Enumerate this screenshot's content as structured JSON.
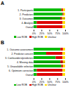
{
  "chart_data": [
    {
      "type": "bar",
      "title": "A",
      "orientation": "horizontal",
      "stacked": true,
      "legend": "bottom",
      "categories": [
        "1. Participants",
        "2. Predictors",
        "3. Outcomes",
        "4. Analysis",
        "Overall"
      ],
      "series": [
        {
          "name": "Low ROB",
          "color": "#00bb00",
          "values": [
            88,
            92,
            85,
            10,
            10
          ]
        },
        {
          "name": "High ROB",
          "color": "#dd0000",
          "values": [
            5,
            3,
            5,
            82,
            82
          ]
        },
        {
          "name": "Unclear",
          "color": "#ffdd00",
          "values": [
            7,
            5,
            10,
            8,
            8
          ]
        }
      ],
      "xlim": [
        0,
        100
      ],
      "xticks": [
        {
          "value": 0,
          "label": "0%"
        },
        {
          "value": 25,
          "label": "25%"
        },
        {
          "value": 50,
          "label": "50%"
        },
        {
          "value": 75,
          "label": "75%"
        },
        {
          "value": 100,
          "label": "100%"
        }
      ]
    },
    {
      "type": "bar",
      "title": "B",
      "orientation": "horizontal",
      "stacked": true,
      "legend": "bottom",
      "categories": [
        "1. Outcome assessment",
        "2. Predictor concern",
        "3. Confounders/predictors",
        "4. Missing data",
        "5. Unavailable selection",
        "6. Optimism correction",
        "Overall"
      ],
      "series": [
        {
          "name": "Low ROB",
          "color": "#00bb00",
          "values": [
            85,
            40,
            70,
            85,
            88,
            10,
            10
          ]
        },
        {
          "name": "High ROB",
          "color": "#dd0000",
          "values": [
            8,
            52,
            22,
            8,
            5,
            82,
            82
          ]
        },
        {
          "name": "Unclear",
          "color": "#ffdd00",
          "values": [
            7,
            8,
            8,
            7,
            7,
            8,
            8
          ]
        }
      ],
      "xlim": [
        0,
        100
      ],
      "xticks": [
        {
          "value": 0,
          "label": "0%"
        },
        {
          "value": 25,
          "label": "25%"
        },
        {
          "value": 50,
          "label": "50%"
        },
        {
          "value": 75,
          "label": "75%"
        },
        {
          "value": 100,
          "label": "100%"
        }
      ]
    }
  ]
}
